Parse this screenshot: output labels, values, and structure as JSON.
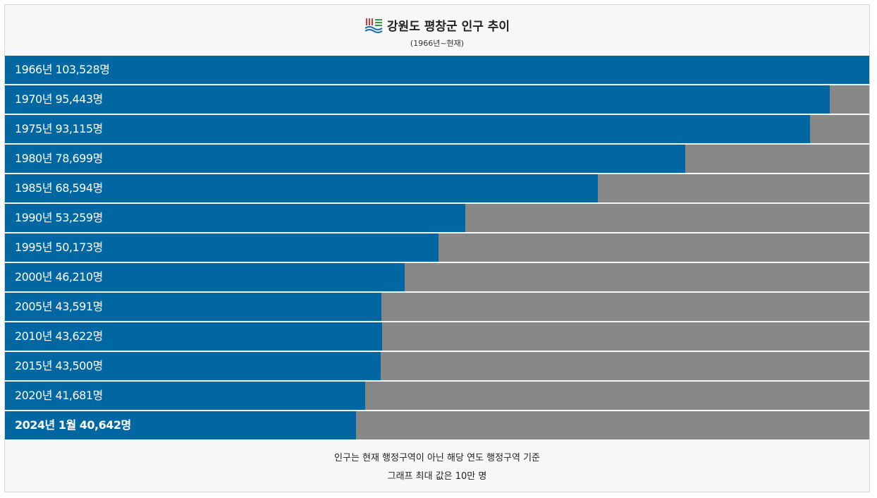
{
  "chart_data": {
    "type": "bar",
    "orientation": "horizontal",
    "title": "강원도 평창군 인구 추이",
    "subtitle": "(1966년~현재)",
    "values": [
      103528,
      95443,
      93115,
      78699,
      68594,
      53259,
      50173,
      46210,
      43591,
      43622,
      43500,
      41681,
      40642
    ],
    "value_labels": [
      "1966년 103,528명",
      "1970년 95,443명",
      "1975년 93,115명",
      "1980년 78,699명",
      "1985년 68,594명",
      "1990년 53,259명",
      "1995년 50,173명",
      "2000년 46,210명",
      "2005년 43,591명",
      "2010년 43,622명",
      "2015년 43,500명",
      "2020년 41,681명",
      "2024년 1월 40,642명"
    ],
    "xlim": [
      0,
      100000
    ],
    "color": "#0067a3",
    "track_color": "#888888",
    "notes": [
      "인구는 현재 행정구역이 아닌 해당 연도 행정구역 기준",
      "그래프 최대 값은 10만 명"
    ]
  }
}
